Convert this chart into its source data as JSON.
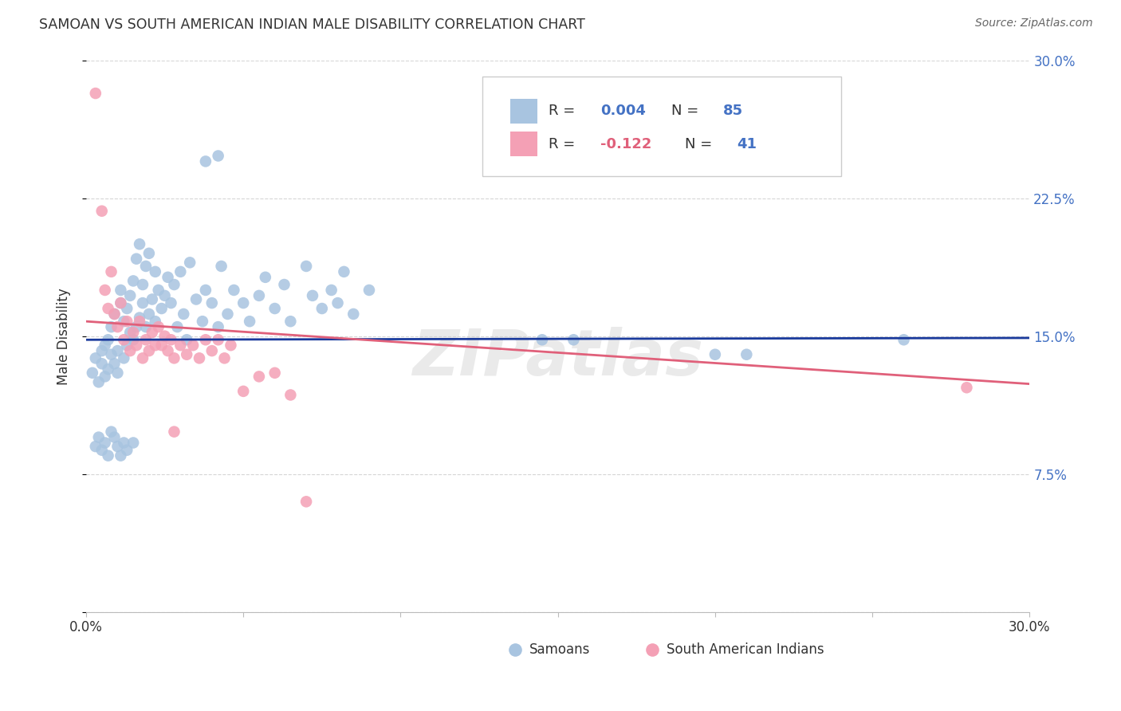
{
  "title": "SAMOAN VS SOUTH AMERICAN INDIAN MALE DISABILITY CORRELATION CHART",
  "source": "Source: ZipAtlas.com",
  "ylabel": "Male Disability",
  "x_min": 0.0,
  "x_max": 0.3,
  "y_min": 0.0,
  "y_max": 0.3,
  "watermark": "ZIPatlas",
  "samoan_color": "#a8c4e0",
  "south_american_color": "#f4a0b5",
  "samoan_line_color": "#1a3a9c",
  "south_american_line_color": "#e0607a",
  "samoan_points": [
    [
      0.002,
      0.13
    ],
    [
      0.003,
      0.138
    ],
    [
      0.004,
      0.125
    ],
    [
      0.005,
      0.142
    ],
    [
      0.005,
      0.135
    ],
    [
      0.006,
      0.128
    ],
    [
      0.006,
      0.145
    ],
    [
      0.007,
      0.132
    ],
    [
      0.007,
      0.148
    ],
    [
      0.008,
      0.14
    ],
    [
      0.008,
      0.155
    ],
    [
      0.009,
      0.135
    ],
    [
      0.009,
      0.162
    ],
    [
      0.01,
      0.142
    ],
    [
      0.01,
      0.13
    ],
    [
      0.011,
      0.168
    ],
    [
      0.011,
      0.175
    ],
    [
      0.012,
      0.138
    ],
    [
      0.012,
      0.158
    ],
    [
      0.013,
      0.145
    ],
    [
      0.013,
      0.165
    ],
    [
      0.014,
      0.152
    ],
    [
      0.014,
      0.172
    ],
    [
      0.015,
      0.148
    ],
    [
      0.015,
      0.18
    ],
    [
      0.016,
      0.155
    ],
    [
      0.016,
      0.192
    ],
    [
      0.017,
      0.16
    ],
    [
      0.017,
      0.2
    ],
    [
      0.018,
      0.168
    ],
    [
      0.018,
      0.178
    ],
    [
      0.019,
      0.155
    ],
    [
      0.019,
      0.188
    ],
    [
      0.02,
      0.162
    ],
    [
      0.02,
      0.195
    ],
    [
      0.021,
      0.17
    ],
    [
      0.022,
      0.158
    ],
    [
      0.022,
      0.185
    ],
    [
      0.023,
      0.175
    ],
    [
      0.024,
      0.165
    ],
    [
      0.025,
      0.172
    ],
    [
      0.026,
      0.182
    ],
    [
      0.027,
      0.168
    ],
    [
      0.028,
      0.178
    ],
    [
      0.029,
      0.155
    ],
    [
      0.03,
      0.185
    ],
    [
      0.031,
      0.162
    ],
    [
      0.032,
      0.148
    ],
    [
      0.033,
      0.19
    ],
    [
      0.035,
      0.17
    ],
    [
      0.037,
      0.158
    ],
    [
      0.038,
      0.175
    ],
    [
      0.04,
      0.168
    ],
    [
      0.042,
      0.155
    ],
    [
      0.043,
      0.188
    ],
    [
      0.045,
      0.162
    ],
    [
      0.047,
      0.175
    ],
    [
      0.05,
      0.168
    ],
    [
      0.052,
      0.158
    ],
    [
      0.055,
      0.172
    ],
    [
      0.057,
      0.182
    ],
    [
      0.06,
      0.165
    ],
    [
      0.063,
      0.178
    ],
    [
      0.065,
      0.158
    ],
    [
      0.07,
      0.188
    ],
    [
      0.072,
      0.172
    ],
    [
      0.075,
      0.165
    ],
    [
      0.078,
      0.175
    ],
    [
      0.08,
      0.168
    ],
    [
      0.082,
      0.185
    ],
    [
      0.085,
      0.162
    ],
    [
      0.09,
      0.175
    ],
    [
      0.038,
      0.245
    ],
    [
      0.042,
      0.248
    ],
    [
      0.145,
      0.148
    ],
    [
      0.155,
      0.148
    ],
    [
      0.2,
      0.14
    ],
    [
      0.21,
      0.14
    ],
    [
      0.26,
      0.148
    ],
    [
      0.003,
      0.09
    ],
    [
      0.004,
      0.095
    ],
    [
      0.005,
      0.088
    ],
    [
      0.006,
      0.092
    ],
    [
      0.007,
      0.085
    ],
    [
      0.008,
      0.098
    ],
    [
      0.009,
      0.095
    ],
    [
      0.01,
      0.09
    ],
    [
      0.011,
      0.085
    ],
    [
      0.012,
      0.092
    ],
    [
      0.013,
      0.088
    ],
    [
      0.015,
      0.092
    ]
  ],
  "south_american_points": [
    [
      0.003,
      0.282
    ],
    [
      0.005,
      0.218
    ],
    [
      0.006,
      0.175
    ],
    [
      0.007,
      0.165
    ],
    [
      0.008,
      0.185
    ],
    [
      0.009,
      0.162
    ],
    [
      0.01,
      0.155
    ],
    [
      0.011,
      0.168
    ],
    [
      0.012,
      0.148
    ],
    [
      0.013,
      0.158
    ],
    [
      0.014,
      0.142
    ],
    [
      0.015,
      0.152
    ],
    [
      0.016,
      0.145
    ],
    [
      0.017,
      0.158
    ],
    [
      0.018,
      0.138
    ],
    [
      0.019,
      0.148
    ],
    [
      0.02,
      0.142
    ],
    [
      0.021,
      0.152
    ],
    [
      0.022,
      0.145
    ],
    [
      0.023,
      0.155
    ],
    [
      0.024,
      0.145
    ],
    [
      0.025,
      0.15
    ],
    [
      0.026,
      0.142
    ],
    [
      0.027,
      0.148
    ],
    [
      0.028,
      0.138
    ],
    [
      0.03,
      0.145
    ],
    [
      0.032,
      0.14
    ],
    [
      0.034,
      0.145
    ],
    [
      0.036,
      0.138
    ],
    [
      0.038,
      0.148
    ],
    [
      0.04,
      0.142
    ],
    [
      0.042,
      0.148
    ],
    [
      0.044,
      0.138
    ],
    [
      0.046,
      0.145
    ],
    [
      0.05,
      0.12
    ],
    [
      0.055,
      0.128
    ],
    [
      0.06,
      0.13
    ],
    [
      0.065,
      0.118
    ],
    [
      0.028,
      0.098
    ],
    [
      0.07,
      0.06
    ],
    [
      0.28,
      0.122
    ]
  ],
  "background_color": "#ffffff",
  "grid_color": "#cccccc",
  "title_color": "#333333",
  "samoan_line_y0": 0.148,
  "samoan_line_y1": 0.149,
  "sa_line_y0": 0.158,
  "sa_line_y1": 0.124
}
